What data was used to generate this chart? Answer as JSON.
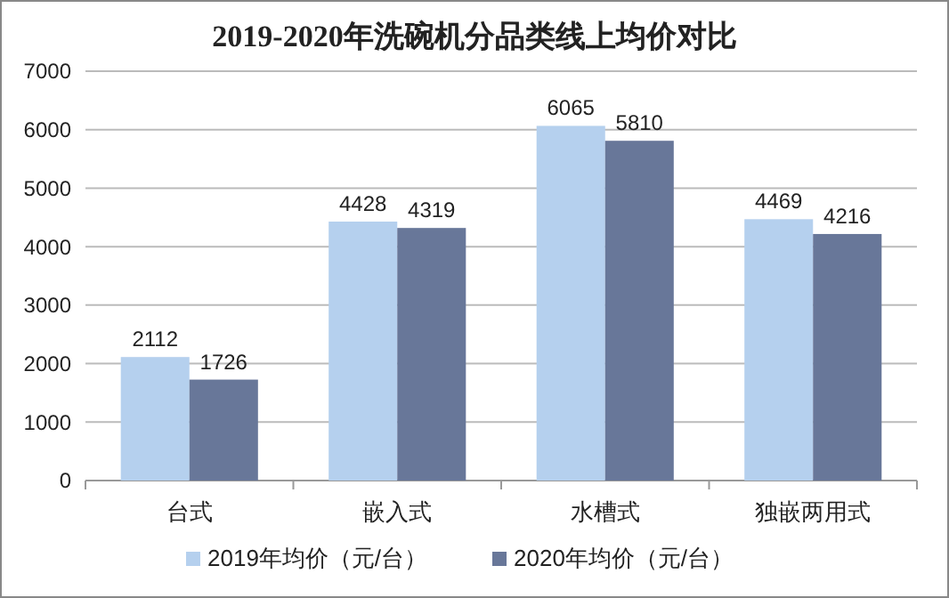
{
  "chart_data": {
    "type": "bar",
    "title": "2019-2020年洗碗机分品类线上均价对比",
    "categories": [
      "台式",
      "嵌入式",
      "水槽式",
      "独嵌两用式"
    ],
    "series": [
      {
        "name": "2019年均价（元/台）",
        "color": "#b5d0ee",
        "values": [
          2112,
          4428,
          6065,
          4469
        ]
      },
      {
        "name": "2020年均价（元/台）",
        "color": "#687799",
        "values": [
          1726,
          4319,
          5810,
          4216
        ]
      }
    ],
    "ylim": [
      0,
      7000
    ],
    "yticks": [
      0,
      1000,
      2000,
      3000,
      4000,
      5000,
      6000,
      7000
    ],
    "grid": "y",
    "legend": "bottom",
    "data_labels": true
  }
}
